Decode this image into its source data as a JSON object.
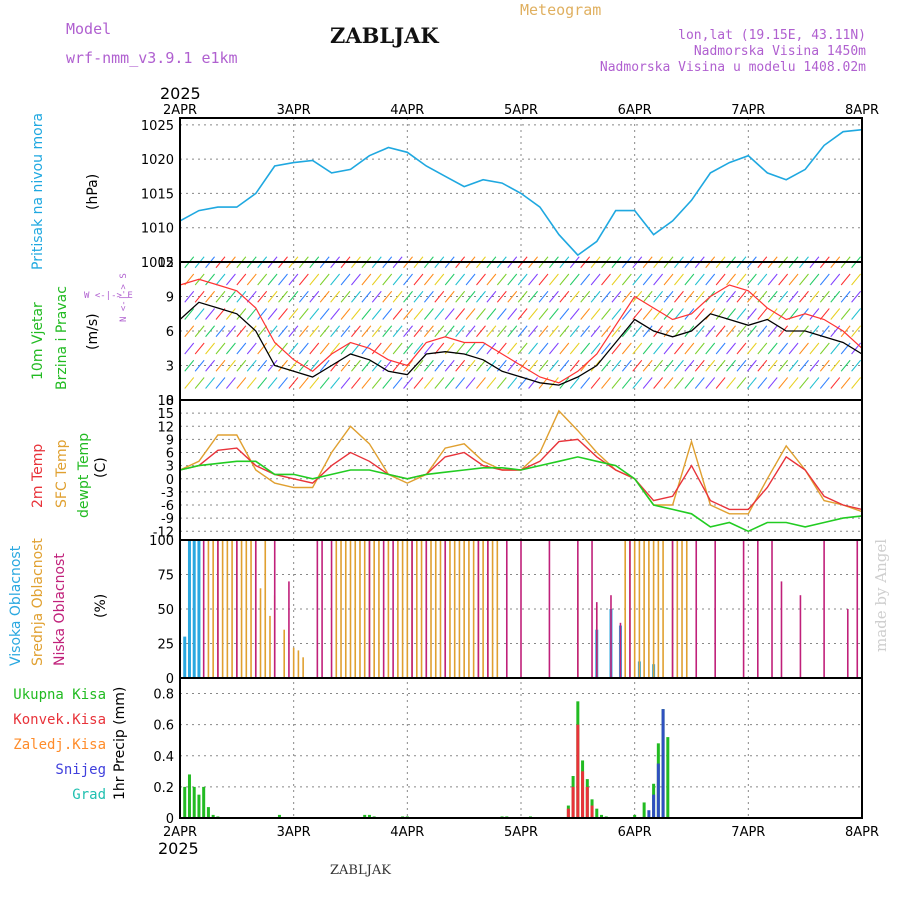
{
  "header": {
    "model_label": "Model",
    "model_name": "wrf-nmm_v3.9.1 e1km",
    "station": "ZABLJAK",
    "title": "Meteogram",
    "lonlat": "lon,lat (19.15E, 43.11N)",
    "elevation": "Nadmorska Visina 1450m",
    "model_elevation": "Nadmorska Visina u modelu 1408.02m"
  },
  "footer": {
    "station": "ZABLJAK",
    "watermark": "made by Angel"
  },
  "year_label": "2025",
  "colors": {
    "pressure": "#1fa8e0",
    "temp2m": "#e8333a",
    "sfc": "#e0a030",
    "dewpt": "#22cc22",
    "wind_speed": "#000000",
    "gust": "#ff3333"
  },
  "panels": {
    "pressure": {
      "label": "Pritisak na nivou mora",
      "unit": "(hPa)"
    },
    "wind": {
      "label1": "10m Vjetar",
      "label2": "Brzina i Pravac",
      "unit": "(m/s)",
      "compass": "W <-|-> E",
      "compass_ns": "N <-|-> S"
    },
    "temp": {
      "label_2m": "2m Temp",
      "label_sfc": "SFC Temp",
      "label_dewpt": "dewpt Temp",
      "unit": "(C)"
    },
    "cloud": {
      "label_high": "Visoka Oblacnost",
      "label_mid": "Srednja Oblacnost",
      "label_low": "Niska Oblacnost",
      "unit": "(%)"
    },
    "precip": {
      "unit": "1hr Precip (mm)",
      "legend": [
        "Ukupna Kisa",
        "Konvek.Kisa",
        "Zaledj.Kisa",
        "Snijeg",
        "Grad"
      ]
    }
  },
  "chart_data": [
    {
      "type": "line",
      "title": "",
      "ylabel": "(hPa)",
      "x_ticks": [
        "2APR",
        "3APR",
        "4APR",
        "5APR",
        "6APR",
        "7APR",
        "8APR"
      ],
      "yticks": [
        "1025",
        "1020",
        "1015",
        "1010",
        "1005"
      ],
      "ylim": [
        1005,
        1026
      ],
      "xlim": [
        0,
        144
      ],
      "series": [
        {
          "name": "Pritisak na nivou mora",
          "x": [
            0,
            4,
            8,
            12,
            16,
            20,
            24,
            28,
            32,
            36,
            40,
            44,
            48,
            52,
            56,
            60,
            64,
            68,
            72,
            76,
            80,
            84,
            88,
            92,
            96,
            100,
            104,
            108,
            112,
            116,
            120,
            124,
            128,
            132,
            136,
            140,
            144
          ],
          "values": [
            1011,
            1012.5,
            1013,
            1013,
            1015,
            1019,
            1019.5,
            1019.8,
            1018,
            1018.5,
            1020.5,
            1021.7,
            1021,
            1019,
            1017.5,
            1016,
            1017,
            1016.5,
            1015,
            1013,
            1009,
            1006,
            1008,
            1012.5,
            1012.5,
            1009,
            1011,
            1014,
            1018,
            1019.5,
            1020.5,
            1018,
            1017,
            1018.5,
            1022,
            1024,
            1024.3
          ]
        }
      ]
    },
    {
      "type": "line",
      "ylabel": "(m/s)",
      "yticks": [
        "12",
        "9",
        "6",
        "3",
        "0"
      ],
      "ylim": [
        0,
        12
      ],
      "xlim": [
        0,
        144
      ],
      "series": [
        {
          "name": "wind speed",
          "x": [
            0,
            4,
            8,
            12,
            16,
            20,
            24,
            28,
            32,
            36,
            40,
            44,
            48,
            52,
            56,
            60,
            64,
            68,
            72,
            76,
            80,
            84,
            88,
            92,
            96,
            100,
            104,
            108,
            112,
            116,
            120,
            124,
            128,
            132,
            136,
            140,
            144
          ],
          "values": [
            7,
            8.5,
            8,
            7.5,
            6,
            3,
            2.5,
            2,
            3,
            4,
            3.5,
            2.5,
            2.2,
            4,
            4.2,
            4,
            3.5,
            2.5,
            2,
            1.5,
            1.3,
            2,
            3,
            5,
            7,
            6,
            5.5,
            6,
            7.5,
            7,
            6.5,
            7,
            6,
            6,
            5.5,
            5,
            4
          ]
        },
        {
          "name": "gust",
          "x": [
            0,
            4,
            8,
            12,
            16,
            20,
            24,
            28,
            32,
            36,
            40,
            44,
            48,
            52,
            56,
            60,
            64,
            68,
            72,
            76,
            80,
            84,
            88,
            92,
            96,
            100,
            104,
            108,
            112,
            116,
            120,
            124,
            128,
            132,
            136,
            140,
            144
          ],
          "values": [
            10,
            10.5,
            10,
            9.5,
            8,
            5,
            3.5,
            2.5,
            4,
            5,
            4.5,
            3.5,
            3,
            5,
            5.5,
            5,
            5,
            4,
            3,
            2,
            1.5,
            2.5,
            4,
            6.5,
            9,
            8,
            7,
            7.5,
            9,
            10,
            9.5,
            8,
            7,
            7.5,
            7,
            6,
            4.5
          ]
        }
      ]
    },
    {
      "type": "line",
      "ylabel": "(C)",
      "yticks": [
        "18",
        "15",
        "12",
        "9",
        "6",
        "3",
        "0",
        "-3",
        "-6",
        "-9",
        "-12"
      ],
      "ylim": [
        -14,
        18
      ],
      "xlim": [
        0,
        144
      ],
      "series": [
        {
          "name": "2m Temp",
          "x": [
            0,
            4,
            8,
            12,
            16,
            20,
            24,
            28,
            32,
            36,
            40,
            44,
            48,
            52,
            56,
            60,
            64,
            68,
            72,
            76,
            80,
            84,
            88,
            92,
            96,
            100,
            104,
            108,
            112,
            116,
            120,
            124,
            128,
            132,
            136,
            140,
            144
          ],
          "values": [
            2,
            3,
            6.5,
            7,
            3,
            1,
            0,
            -1,
            3,
            6,
            4,
            1,
            0,
            1,
            5,
            6,
            3,
            2,
            2,
            4,
            8.5,
            9,
            5,
            2,
            0,
            -5,
            -4,
            3,
            -5,
            -7,
            -7,
            -2,
            5,
            2,
            -4,
            -6,
            -7
          ]
        },
        {
          "name": "SFC Temp",
          "x": [
            0,
            4,
            8,
            12,
            16,
            20,
            24,
            28,
            32,
            36,
            40,
            44,
            48,
            52,
            56,
            60,
            64,
            68,
            72,
            76,
            80,
            84,
            88,
            92,
            96,
            100,
            104,
            108,
            112,
            116,
            120,
            124,
            128,
            132,
            136,
            140,
            144
          ],
          "values": [
            2,
            4,
            10,
            10,
            2,
            -1,
            -2,
            -2,
            6,
            12,
            8,
            1,
            -1,
            1,
            7,
            8,
            4,
            2,
            2,
            6,
            15.5,
            11,
            6,
            2,
            0,
            -6,
            -6,
            8.5,
            -6,
            -8,
            -8,
            0,
            7.5,
            2,
            -5,
            -6,
            -7.5
          ]
        },
        {
          "name": "dewpt Temp",
          "x": [
            0,
            4,
            8,
            12,
            16,
            20,
            24,
            28,
            32,
            36,
            40,
            44,
            48,
            52,
            56,
            60,
            64,
            68,
            72,
            76,
            80,
            84,
            88,
            92,
            96,
            100,
            104,
            108,
            112,
            116,
            120,
            124,
            128,
            132,
            136,
            140,
            144
          ],
          "values": [
            2,
            3,
            3.5,
            4,
            4,
            1,
            1,
            0,
            1,
            2,
            2,
            1,
            0,
            1,
            1.5,
            2,
            2.5,
            2.5,
            2,
            3,
            4,
            5,
            4,
            3,
            0,
            -6,
            -7,
            -8,
            -11,
            -10,
            -12,
            -10,
            -10,
            -11,
            -10,
            -9,
            -8.5
          ]
        }
      ]
    },
    {
      "type": "bar",
      "ylabel": "(%)",
      "yticks": [
        "100",
        "75",
        "50",
        "25",
        "0"
      ],
      "ylim": [
        0,
        100
      ],
      "xlim": [
        0,
        144
      ],
      "series": [
        {
          "name": "Visoka Oblacnost",
          "x": [
            1,
            2,
            3,
            4,
            88,
            91,
            93,
            97,
            100
          ],
          "values": [
            30,
            100,
            100,
            100,
            35,
            50,
            38,
            12,
            10
          ]
        },
        {
          "name": "Srednja Oblacnost",
          "x": [
            6,
            7,
            8,
            9,
            10,
            11,
            12,
            13,
            14,
            15,
            16,
            17,
            18,
            19,
            20,
            22,
            24,
            25,
            26,
            33,
            34,
            35,
            36,
            37,
            38,
            39,
            40,
            41,
            42,
            44,
            46,
            47,
            48,
            49,
            50,
            51,
            52,
            53,
            54,
            55,
            56,
            57,
            58,
            59,
            60,
            61,
            62,
            63,
            64,
            65,
            66,
            67,
            84,
            88,
            94,
            95,
            96,
            97,
            98,
            99,
            100,
            101,
            102,
            104,
            105,
            106,
            107
          ],
          "values": [
            100,
            100,
            100,
            100,
            100,
            100,
            100,
            100,
            100,
            100,
            100,
            65,
            100,
            45,
            60,
            35,
            22,
            20,
            15,
            100,
            100,
            100,
            100,
            100,
            100,
            100,
            100,
            100,
            100,
            100,
            100,
            100,
            100,
            100,
            100,
            100,
            100,
            100,
            100,
            100,
            100,
            100,
            100,
            100,
            100,
            100,
            100,
            100,
            100,
            100,
            100,
            100,
            75,
            52,
            100,
            100,
            100,
            100,
            100,
            100,
            100,
            100,
            100,
            100,
            100,
            100,
            100
          ]
        },
        {
          "name": "Niska Oblacnost",
          "x": [
            5,
            8,
            12,
            16,
            20,
            23,
            29,
            30,
            32,
            40,
            43,
            45,
            49,
            52,
            56,
            63,
            65,
            69,
            72,
            78,
            84,
            87,
            88,
            91,
            93,
            95,
            104,
            109,
            113,
            119,
            122,
            125,
            127,
            131,
            136,
            141,
            143
          ],
          "values": [
            100,
            100,
            100,
            100,
            100,
            70,
            100,
            100,
            100,
            100,
            100,
            100,
            100,
            100,
            100,
            100,
            100,
            100,
            100,
            100,
            100,
            100,
            55,
            60,
            40,
            100,
            100,
            100,
            100,
            100,
            100,
            100,
            70,
            60,
            100,
            50,
            100
          ]
        }
      ]
    },
    {
      "type": "bar",
      "ylabel": "1hr Precip (mm)",
      "x_ticks": [
        "2APR",
        "3APR",
        "4APR",
        "5APR",
        "6APR",
        "7APR",
        "8APR"
      ],
      "yticks": [
        "0.8",
        "0.6",
        "0.4",
        "0.2",
        "0"
      ],
      "ylim": [
        0,
        0.9
      ],
      "xlim": [
        0,
        144
      ],
      "series": [
        {
          "name": "Ukupna Kisa",
          "x": [
            1,
            2,
            3,
            4,
            5,
            6,
            7,
            8,
            21,
            39,
            40,
            41,
            47,
            48,
            68,
            69,
            74,
            82,
            83,
            84,
            85,
            86,
            87,
            88,
            89,
            90,
            96,
            98,
            100,
            101,
            102,
            103
          ],
          "values": [
            0.2,
            0.28,
            0.2,
            0.15,
            0.2,
            0.07,
            0.02,
            0.01,
            0.02,
            0.02,
            0.02,
            0.01,
            0.01,
            0.01,
            0.01,
            0.01,
            0.01,
            0.08,
            0.27,
            0.75,
            0.37,
            0.25,
            0.12,
            0.06,
            0.02,
            0.01,
            0.02,
            0.1,
            0.22,
            0.48,
            0.7,
            0.52
          ]
        },
        {
          "name": "Konvek.Kisa",
          "x": [
            82,
            83,
            84,
            85,
            86,
            87
          ],
          "values": [
            0.06,
            0.2,
            0.6,
            0.3,
            0.2,
            0.08
          ]
        },
        {
          "name": "Snijeg",
          "x": [
            99,
            100,
            101,
            102
          ],
          "values": [
            0.05,
            0.15,
            0.35,
            0.7
          ]
        }
      ]
    }
  ]
}
